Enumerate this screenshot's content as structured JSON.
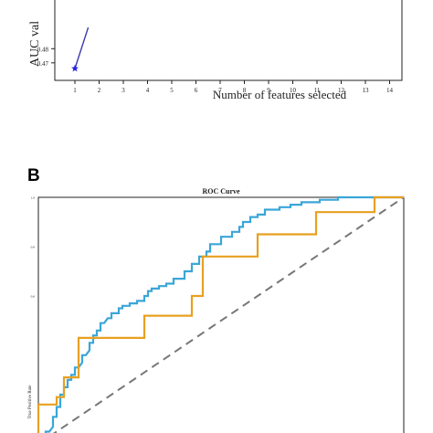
{
  "chart_data": [
    {
      "type": "line",
      "panel": "",
      "title": "",
      "xlabel": "Number of features selected",
      "ylabel": "AUC val",
      "x_ticks": [
        "1",
        "2",
        "3",
        "4",
        "5",
        "6",
        "7",
        "8",
        "9",
        "10",
        "11",
        "12",
        "13",
        "14"
      ],
      "y_ticks": [
        "0.47",
        "0.48"
      ],
      "ylim": [
        0.465,
        0.492
      ],
      "grid": false,
      "series": [
        {
          "x": [
            1,
            1.55
          ],
          "y": [
            0.466,
            0.495
          ],
          "color": "#3a3aa8"
        }
      ],
      "markers": [
        {
          "x": 1,
          "y": 0.466,
          "shape": "star",
          "color": "#2525dd"
        }
      ]
    },
    {
      "type": "line",
      "panel": "B",
      "title": "ROC Curve",
      "xlabel": "",
      "ylabel": "True Positive Rate",
      "xlim": [
        0,
        1
      ],
      "ylim": [
        0,
        1
      ],
      "y_ticks": [
        "0.6",
        "0.8",
        "1.0"
      ],
      "grid": false,
      "diagonal": {
        "x": [
          0,
          1
        ],
        "y": [
          0,
          1
        ],
        "color": "#777777",
        "style": "dashed"
      },
      "series": [
        {
          "color": "#3aa6d8",
          "x": [
            0.0,
            0.0,
            0.02,
            0.02,
            0.03,
            0.04,
            0.04,
            0.05,
            0.05,
            0.06,
            0.06,
            0.07,
            0.07,
            0.08,
            0.08,
            0.09,
            0.09,
            0.1,
            0.1,
            0.11,
            0.12,
            0.12,
            0.13,
            0.14,
            0.14,
            0.15,
            0.15,
            0.16,
            0.16,
            0.17,
            0.17,
            0.18,
            0.19,
            0.2,
            0.2,
            0.22,
            0.22,
            0.23,
            0.23,
            0.25,
            0.25,
            0.27,
            0.27,
            0.29,
            0.29,
            0.3,
            0.3,
            0.31,
            0.31,
            0.33,
            0.33,
            0.35,
            0.35,
            0.37,
            0.37,
            0.4,
            0.4,
            0.42,
            0.42,
            0.44,
            0.44,
            0.46,
            0.46,
            0.47,
            0.47,
            0.5,
            0.5,
            0.53,
            0.53,
            0.55,
            0.55,
            0.56,
            0.56,
            0.58,
            0.58,
            0.6,
            0.6,
            0.62,
            0.62,
            0.66,
            0.66,
            0.69,
            0.69,
            0.72,
            0.72,
            0.77,
            0.77,
            0.82,
            0.82,
            0.87,
            0.87,
            0.92,
            0.92,
            1.0
          ],
          "y": [
            0.0,
            0.02,
            0.02,
            0.05,
            0.05,
            0.07,
            0.11,
            0.11,
            0.15,
            0.15,
            0.2,
            0.2,
            0.23,
            0.23,
            0.26,
            0.26,
            0.28,
            0.28,
            0.31,
            0.31,
            0.33,
            0.36,
            0.36,
            0.38,
            0.41,
            0.41,
            0.44,
            0.44,
            0.46,
            0.46,
            0.49,
            0.49,
            0.51,
            0.51,
            0.53,
            0.53,
            0.55,
            0.55,
            0.56,
            0.56,
            0.57,
            0.57,
            0.58,
            0.58,
            0.6,
            0.6,
            0.62,
            0.62,
            0.63,
            0.63,
            0.64,
            0.64,
            0.65,
            0.65,
            0.67,
            0.67,
            0.7,
            0.7,
            0.73,
            0.73,
            0.76,
            0.76,
            0.78,
            0.78,
            0.81,
            0.81,
            0.84,
            0.84,
            0.86,
            0.86,
            0.88,
            0.88,
            0.9,
            0.9,
            0.92,
            0.92,
            0.93,
            0.93,
            0.95,
            0.95,
            0.96,
            0.96,
            0.97,
            0.97,
            0.98,
            0.98,
            0.99,
            0.99,
            1.0,
            1.0,
            1.0,
            1.0,
            1.0,
            1.0
          ]
        },
        {
          "color": "#e8a020",
          "x": [
            0.0,
            0.0,
            0.05,
            0.05,
            0.07,
            0.07,
            0.11,
            0.11,
            0.19,
            0.19,
            0.29,
            0.29,
            0.42,
            0.42,
            0.45,
            0.45,
            0.57,
            0.57,
            0.6,
            0.6,
            0.76,
            0.76,
            0.92,
            0.92,
            1.0
          ],
          "y": [
            0.0,
            0.16,
            0.16,
            0.19,
            0.19,
            0.27,
            0.27,
            0.43,
            0.43,
            0.43,
            0.43,
            0.52,
            0.52,
            0.6,
            0.6,
            0.76,
            0.76,
            0.76,
            0.76,
            0.85,
            0.85,
            0.94,
            0.94,
            1.0,
            1.0
          ]
        }
      ]
    }
  ]
}
